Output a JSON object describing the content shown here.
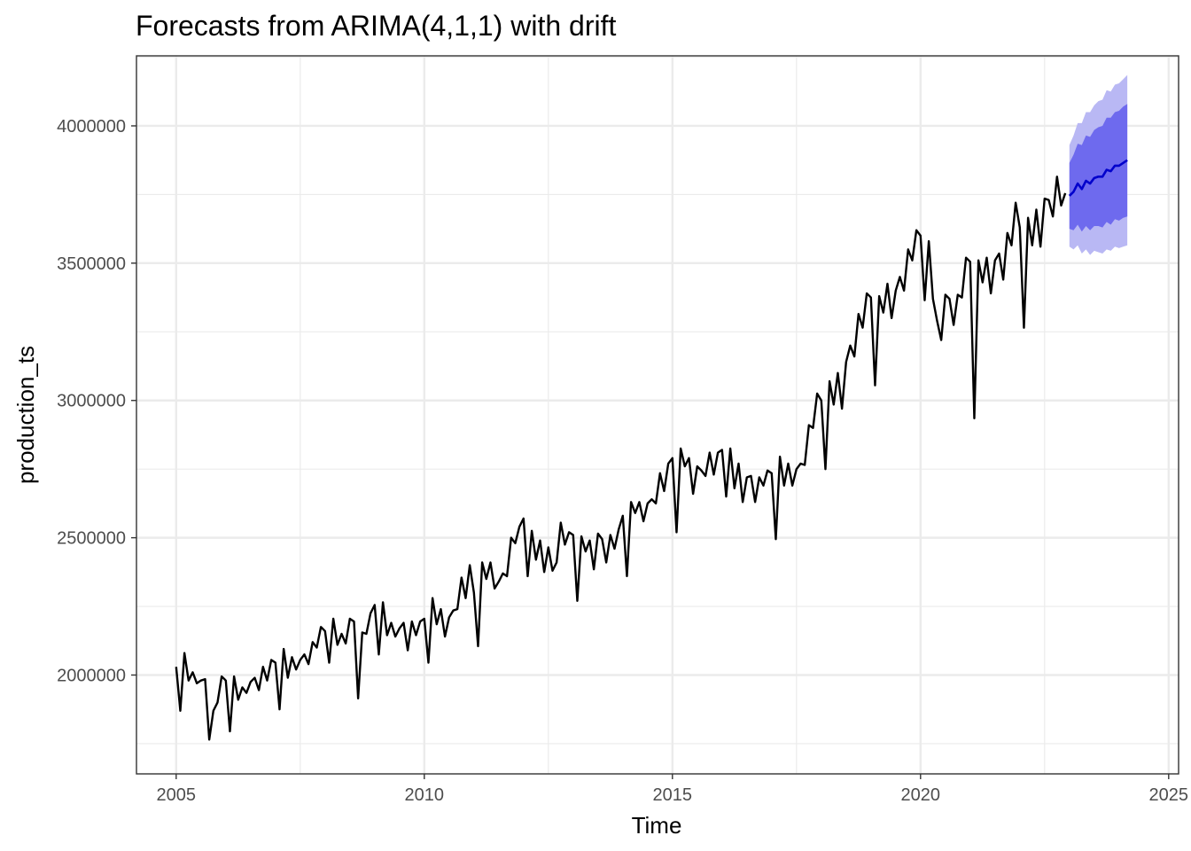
{
  "chart_data": {
    "type": "line",
    "title": "Forecasts from ARIMA(4,1,1) with drift",
    "xlabel": "Time",
    "ylabel": "production_ts",
    "xlim": [
      2004.2,
      2025.2
    ],
    "ylim": [
      1640000,
      4255000
    ],
    "grid": true,
    "x_ticks": [
      2005,
      2010,
      2015,
      2020,
      2025
    ],
    "x_tick_labels": [
      "2005",
      "2010",
      "2015",
      "2020",
      "2025"
    ],
    "y_ticks": [
      2000000,
      2500000,
      3000000,
      3500000,
      4000000
    ],
    "y_tick_labels": [
      "2000000",
      "2500000",
      "3000000",
      "3500000",
      "4000000"
    ],
    "colors": {
      "history": "#000000",
      "forecast": "#0000cc",
      "band80": "#6e6aee",
      "band95": "#b9b8f4",
      "grid": "#ebebeb",
      "panel_border": "#333333"
    },
    "history": {
      "start": 2005.0,
      "frequency": 12,
      "values": [
        2030000,
        1870000,
        2080000,
        1980000,
        2010000,
        1970000,
        1980000,
        1985000,
        1765000,
        1870000,
        1900000,
        1995000,
        1980000,
        1795000,
        1995000,
        1910000,
        1955000,
        1935000,
        1975000,
        1990000,
        1945000,
        2030000,
        1980000,
        2055000,
        2045000,
        1875000,
        2095000,
        1990000,
        2065000,
        2020000,
        2055000,
        2075000,
        2040000,
        2120000,
        2100000,
        2175000,
        2160000,
        2045000,
        2205000,
        2110000,
        2150000,
        2115000,
        2205000,
        2195000,
        1915000,
        2155000,
        2150000,
        2225000,
        2255000,
        2075000,
        2265000,
        2145000,
        2190000,
        2140000,
        2170000,
        2190000,
        2090000,
        2195000,
        2145000,
        2195000,
        2205000,
        2045000,
        2280000,
        2185000,
        2240000,
        2140000,
        2210000,
        2235000,
        2240000,
        2355000,
        2280000,
        2400000,
        2300000,
        2105000,
        2410000,
        2350000,
        2410000,
        2315000,
        2340000,
        2370000,
        2360000,
        2500000,
        2480000,
        2540000,
        2570000,
        2360000,
        2525000,
        2420000,
        2490000,
        2375000,
        2465000,
        2380000,
        2410000,
        2555000,
        2475000,
        2520000,
        2510000,
        2270000,
        2505000,
        2450000,
        2490000,
        2385000,
        2515000,
        2495000,
        2410000,
        2510000,
        2460000,
        2530000,
        2580000,
        2360000,
        2630000,
        2590000,
        2630000,
        2560000,
        2625000,
        2640000,
        2625000,
        2735000,
        2670000,
        2770000,
        2790000,
        2520000,
        2825000,
        2760000,
        2790000,
        2660000,
        2760000,
        2745000,
        2725000,
        2810000,
        2730000,
        2810000,
        2820000,
        2650000,
        2825000,
        2680000,
        2770000,
        2630000,
        2720000,
        2725000,
        2630000,
        2720000,
        2690000,
        2745000,
        2735000,
        2495000,
        2795000,
        2690000,
        2770000,
        2690000,
        2750000,
        2770000,
        2765000,
        2910000,
        2900000,
        3025000,
        3000000,
        2750000,
        3070000,
        2985000,
        3100000,
        2970000,
        3140000,
        3200000,
        3160000,
        3315000,
        3265000,
        3390000,
        3375000,
        3055000,
        3380000,
        3320000,
        3425000,
        3300000,
        3400000,
        3450000,
        3400000,
        3550000,
        3510000,
        3620000,
        3600000,
        3365000,
        3580000,
        3370000,
        3290000,
        3220000,
        3385000,
        3370000,
        3275000,
        3385000,
        3375000,
        3520000,
        3505000,
        2935000,
        3510000,
        3430000,
        3520000,
        3390000,
        3510000,
        3535000,
        3440000,
        3610000,
        3565000,
        3720000,
        3630000,
        3265000,
        3665000,
        3565000,
        3695000,
        3560000,
        3735000,
        3730000,
        3670000,
        3815000,
        3710000,
        3755000
      ]
    },
    "forecast": {
      "start": 2023.0,
      "frequency": 12,
      "mean": [
        3745000,
        3760000,
        3790000,
        3770000,
        3800000,
        3790000,
        3810000,
        3815000,
        3815000,
        3840000,
        3835000,
        3855000,
        3855000,
        3865000,
        3875000
      ],
      "lo80": [
        3625000,
        3620000,
        3640000,
        3615000,
        3635000,
        3620000,
        3635000,
        3635000,
        3630000,
        3650000,
        3640000,
        3660000,
        3655000,
        3665000,
        3670000
      ],
      "hi80": [
        3865000,
        3895000,
        3935000,
        3930000,
        3965000,
        3960000,
        3985000,
        3995000,
        4000000,
        4030000,
        4030000,
        4050000,
        4055000,
        4070000,
        4080000
      ],
      "lo95": [
        3560000,
        3550000,
        3565000,
        3535000,
        3550000,
        3530000,
        3545000,
        3540000,
        3535000,
        3550000,
        3545000,
        3560000,
        3555000,
        3560000,
        3565000
      ],
      "hi95": [
        3930000,
        3965000,
        4010000,
        4010000,
        4050000,
        4050000,
        4075000,
        4090000,
        4095000,
        4130000,
        4125000,
        4150000,
        4155000,
        4170000,
        4185000
      ]
    }
  }
}
